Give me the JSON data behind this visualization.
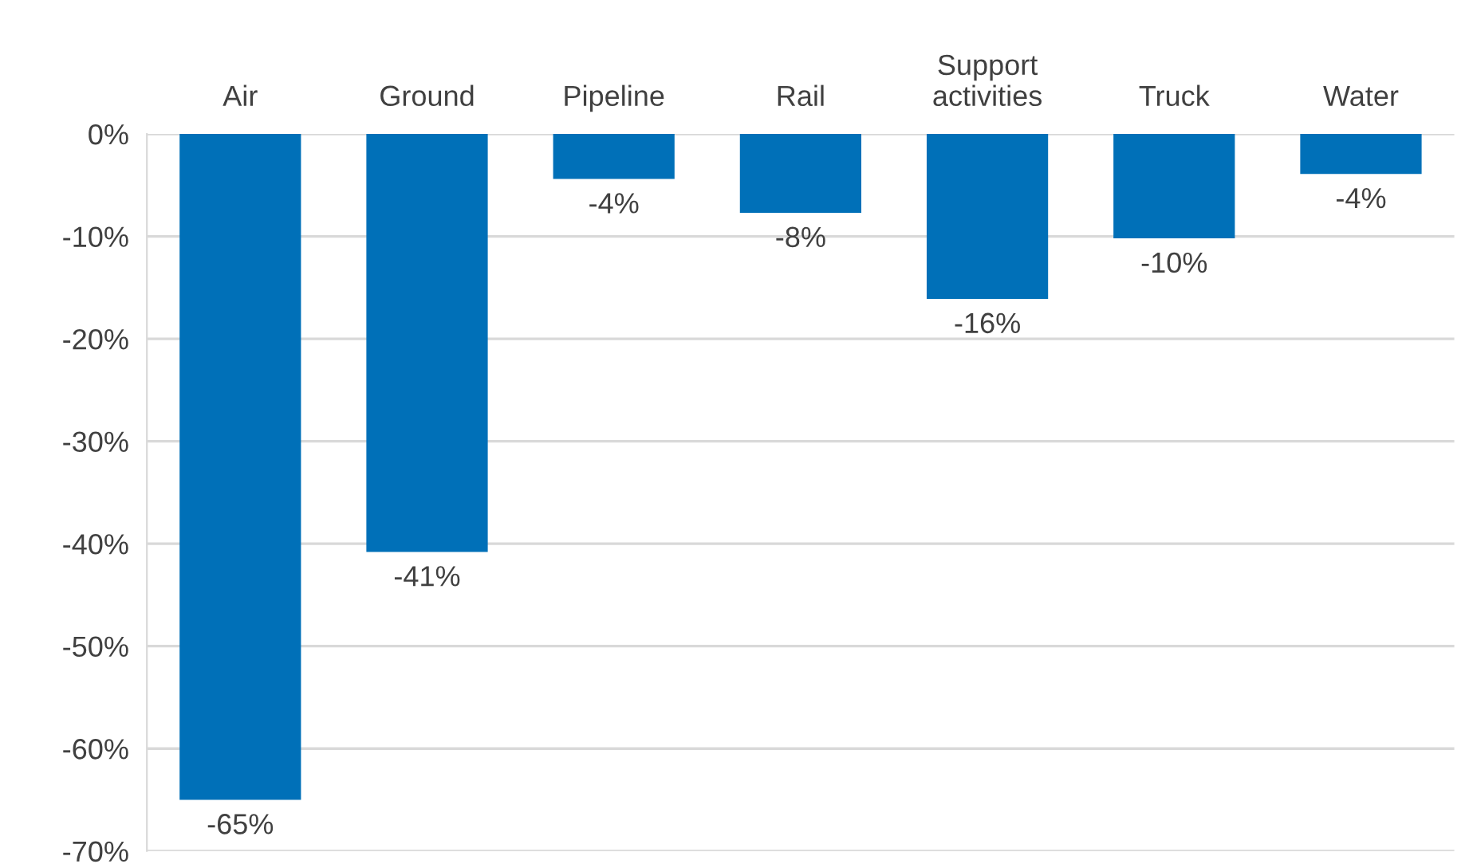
{
  "chart_data": {
    "type": "bar",
    "categories": [
      "Air",
      "Ground",
      "Pipeline",
      "Rail",
      "Support activities",
      "Truck",
      "Water"
    ],
    "values": [
      -65.0,
      -40.8,
      -4.4,
      -7.7,
      -16.1,
      -10.2,
      -3.9
    ],
    "value_labels": [
      "-65%",
      "-41%",
      "-4%",
      "-8%",
      "-16%",
      "-10%",
      "-4%"
    ],
    "color": "#0070b8",
    "ylim": [
      -70,
      0
    ],
    "yticks": [
      {
        "value": 0,
        "label": "0%"
      },
      {
        "value": -10,
        "label": "-10%"
      },
      {
        "value": -20,
        "label": "-20%"
      },
      {
        "value": -30,
        "label": "-30%"
      },
      {
        "value": -40,
        "label": "-40%"
      },
      {
        "value": -50,
        "label": "-50%"
      },
      {
        "value": -60,
        "label": "-60%"
      },
      {
        "value": -70,
        "label": "-70%"
      }
    ],
    "grid": "y"
  }
}
